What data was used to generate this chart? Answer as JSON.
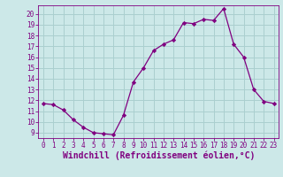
{
  "x": [
    0,
    1,
    2,
    3,
    4,
    5,
    6,
    7,
    8,
    9,
    10,
    11,
    12,
    13,
    14,
    15,
    16,
    17,
    18,
    19,
    20,
    21,
    22,
    23
  ],
  "y": [
    11.7,
    11.6,
    11.1,
    10.2,
    9.5,
    9.0,
    8.9,
    8.8,
    10.6,
    13.7,
    15.0,
    16.6,
    17.2,
    17.6,
    19.2,
    19.1,
    19.5,
    19.4,
    20.5,
    17.2,
    16.0,
    13.0,
    11.9,
    11.7
  ],
  "line_color": "#800080",
  "marker": "D",
  "marker_size": 2.2,
  "bg_color": "#cce8e8",
  "grid_color": "#aacfcf",
  "xlabel": "Windchill (Refroidissement éolien,°C)",
  "xlim": [
    -0.5,
    23.5
  ],
  "ylim": [
    8.5,
    20.8
  ],
  "yticks": [
    9,
    10,
    11,
    12,
    13,
    14,
    15,
    16,
    17,
    18,
    19,
    20
  ],
  "xticks": [
    0,
    1,
    2,
    3,
    4,
    5,
    6,
    7,
    8,
    9,
    10,
    11,
    12,
    13,
    14,
    15,
    16,
    17,
    18,
    19,
    20,
    21,
    22,
    23
  ],
  "tick_color": "#800080",
  "label_color": "#800080",
  "tick_fontsize": 5.5,
  "xlabel_fontsize": 7.0
}
